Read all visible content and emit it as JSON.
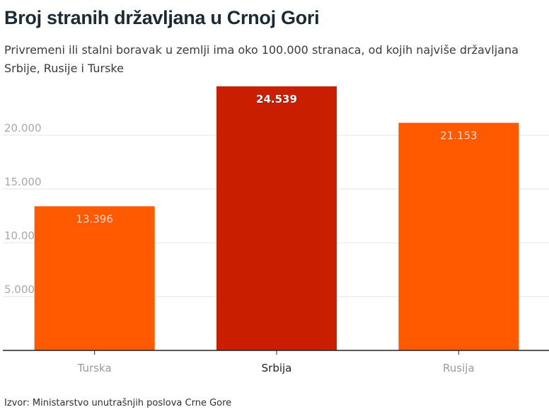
{
  "header": {
    "title": "Broj stranih državljana u Crnoj Gori",
    "subtitle": "Privremeni ili stalni boravak u zemlji ima oko 100.000 stranaca, od kojih najviše državljana Srbije, Rusije i Turske"
  },
  "footer": {
    "source": "Izvor: Ministarstvo unutrašnjih poslova Crne Gore"
  },
  "chart_data": {
    "type": "bar",
    "categories": [
      "Turska",
      "Srbija",
      "Rusija"
    ],
    "values": [
      13396,
      24539,
      21153
    ],
    "value_labels": [
      "13.396",
      "24.539",
      "21.153"
    ],
    "highlight_category": "Srbija",
    "ylim": [
      0,
      25000
    ],
    "yticks": [
      5000,
      10000,
      15000,
      20000
    ],
    "ytick_labels": [
      "5.000",
      "10.000",
      "15.000",
      "20.000"
    ],
    "grid": true,
    "colors": {
      "bar": "#ff5a00",
      "highlight_bar": "#c91f00",
      "value_label": "#ffd3bd",
      "highlight_value_label": "#ffffff",
      "axis": "#222222",
      "gridline": "#e4e4e4",
      "tick_label": "#a8a8a8",
      "category_label": "#9a9a9a",
      "highlight_category_label": "#222222"
    }
  }
}
